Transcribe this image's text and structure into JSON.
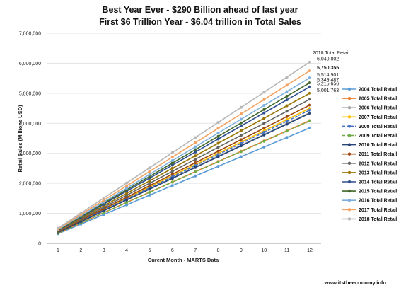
{
  "chart_data": {
    "type": "line",
    "title": "Best Year Ever - $290 Billion ahead of last year",
    "subtitle": "First $6 Trillion Year - $6.04 trillion in Total Sales",
    "xlabel": "Curent Month - MARTS Data",
    "ylabel": "Retail Sales (Millions USD)",
    "ylim": [
      0,
      7000000
    ],
    "y_ticks": [
      "0",
      "1,000,000",
      "2,000,000",
      "3,000,000",
      "4,000,000",
      "5,000,000",
      "6,000,000",
      "7,000,000"
    ],
    "x": [
      1,
      2,
      3,
      4,
      5,
      6,
      7,
      8,
      9,
      10,
      11,
      12
    ],
    "grid": "horizontal",
    "legend_position": "right",
    "series": [
      {
        "name": "2004 Total Retail",
        "color": "#5b9bd5",
        "dashed": false,
        "values": [
          321000,
          640000,
          962000,
          1283000,
          1604000,
          1925000,
          2246000,
          2566000,
          2887000,
          3208000,
          3529000,
          3850000
        ]
      },
      {
        "name": "2005 Total Retail",
        "color": "#ed7d31",
        "dashed": false,
        "values": [
          341000,
          682000,
          1023000,
          1364000,
          1705000,
          2046000,
          2387000,
          2728000,
          3069000,
          3410000,
          3751000,
          4092000
        ]
      },
      {
        "name": "2006 Total Retail",
        "color": "#a5a5a5",
        "dashed": false,
        "values": [
          363000,
          726000,
          1089000,
          1452000,
          1815000,
          2178000,
          2541000,
          2904000,
          3267000,
          3630000,
          3993000,
          4356000
        ]
      },
      {
        "name": "2007 Total Retail",
        "color": "#ffc000",
        "dashed": false,
        "values": [
          375000,
          750000,
          1125000,
          1500000,
          1875000,
          2250000,
          2625000,
          3000000,
          3375000,
          3750000,
          4125000,
          4500000
        ]
      },
      {
        "name": "2008 Total Retail",
        "color": "#4472c4",
        "dashed": true,
        "values": [
          370000,
          740000,
          1110000,
          1480000,
          1850000,
          2220000,
          2590000,
          2960000,
          3330000,
          3700000,
          4070000,
          4440000
        ]
      },
      {
        "name": "2009 Total Retail",
        "color": "#70ad47",
        "dashed": true,
        "values": [
          340000,
          680000,
          1020000,
          1360000,
          1700000,
          2040000,
          2380000,
          2720000,
          3060000,
          3400000,
          3740000,
          4080000
        ]
      },
      {
        "name": "2010 Total Retail",
        "color": "#264478",
        "dashed": false,
        "values": [
          361000,
          722000,
          1083000,
          1444000,
          1805000,
          2166000,
          2527000,
          2888000,
          3249000,
          3610000,
          3971000,
          4332000
        ]
      },
      {
        "name": "2011 Total Retail",
        "color": "#9e480e",
        "dashed": false,
        "values": [
          384000,
          768000,
          1152000,
          1536000,
          1920000,
          2304000,
          2688000,
          3072000,
          3456000,
          3840000,
          4224000,
          4608000
        ]
      },
      {
        "name": "2012 Total Retail",
        "color": "#636363",
        "dashed": false,
        "values": [
          400000,
          800000,
          1200000,
          1600000,
          2000000,
          2400000,
          2800000,
          3200000,
          3600000,
          4000000,
          4400000,
          4800000
        ]
      },
      {
        "name": "2013 Total Retail",
        "color": "#997300",
        "dashed": false,
        "values": [
          416800,
          833600,
          1250400,
          1667200,
          2084000,
          2500800,
          2917600,
          3334400,
          3751200,
          4168000,
          4584900,
          5001763
        ]
      },
      {
        "name": "2014 Total Retail",
        "color": "#2f4f8f",
        "dashed": false,
        "values": [
          434600,
          869300,
          1303900,
          1738500,
          2173200,
          2607800,
          3042500,
          3477100,
          3911700,
          4346400,
          4781000,
          5215656
        ]
      },
      {
        "name": "2015 Total Retail",
        "color": "#43682b",
        "dashed": false,
        "values": [
          445800,
          891600,
          1337400,
          1783200,
          2229000,
          2674700,
          3120500,
          3566300,
          4012100,
          4457900,
          4903700,
          5349487
        ]
      },
      {
        "name": "2016 Total Retail",
        "color": "#7cafdd",
        "dashed": false,
        "values": [
          459600,
          919200,
          1378700,
          1838300,
          2297900,
          2757500,
          3217000,
          3676600,
          4136200,
          4595800,
          5055300,
          5514901
        ]
      },
      {
        "name": "2017 Total Retail",
        "color": "#f4a261",
        "dashed": false,
        "values": [
          479200,
          958400,
          1437600,
          1916800,
          2396000,
          2875200,
          3354400,
          3833600,
          4312800,
          4792000,
          5271200,
          5750355
        ]
      },
      {
        "name": "2018 Total Retail",
        "color": "#b7b7b7",
        "dashed": false,
        "values": [
          503400,
          1006800,
          1510200,
          2013600,
          2517000,
          3020400,
          3523800,
          4027200,
          4530600,
          5034000,
          5537400,
          6040802
        ]
      }
    ],
    "end_labels": [
      {
        "text": "2018 Total Retail",
        "y": 6240000
      },
      {
        "text": "6,040,802",
        "y": 6040802
      },
      {
        "text": "5,750,355",
        "y": 5750355,
        "bold": true
      },
      {
        "text": "5,514,901",
        "y": 5514901
      },
      {
        "text": "5,349,487",
        "y": 5349487
      },
      {
        "text": "5,215,656",
        "y": 5215656
      },
      {
        "text": "5,001,763",
        "y": 5001763
      }
    ],
    "footer": "www.itstheeconomy.info"
  }
}
